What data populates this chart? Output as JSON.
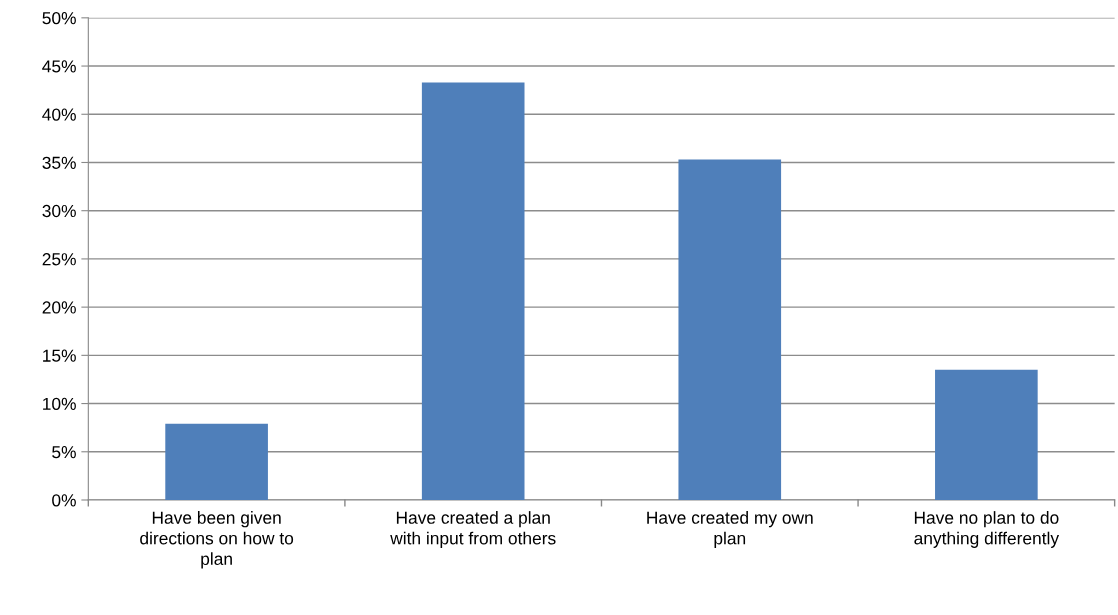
{
  "chart_data": {
    "type": "bar",
    "categories": [
      "Have been given\ndirections on how to\nplan",
      "Have created a plan\nwith input from others",
      "Have created my own\nplan",
      "Have no plan to do\nanything differently"
    ],
    "values": [
      7.9,
      43.3,
      35.3,
      13.5
    ],
    "color": "#4f7fba",
    "ylim": [
      0,
      50
    ],
    "yticks": [
      {
        "value": 0,
        "label": "0%"
      },
      {
        "value": 5,
        "label": "5%"
      },
      {
        "value": 10,
        "label": "10%"
      },
      {
        "value": 15,
        "label": "15%"
      },
      {
        "value": 20,
        "label": "20%"
      },
      {
        "value": 25,
        "label": "25%"
      },
      {
        "value": 30,
        "label": "30%"
      },
      {
        "value": 35,
        "label": "35%"
      },
      {
        "value": 40,
        "label": "40%"
      },
      {
        "value": 45,
        "label": "45%"
      },
      {
        "value": 50,
        "label": "50%"
      }
    ],
    "grid": "y",
    "legend": false
  }
}
